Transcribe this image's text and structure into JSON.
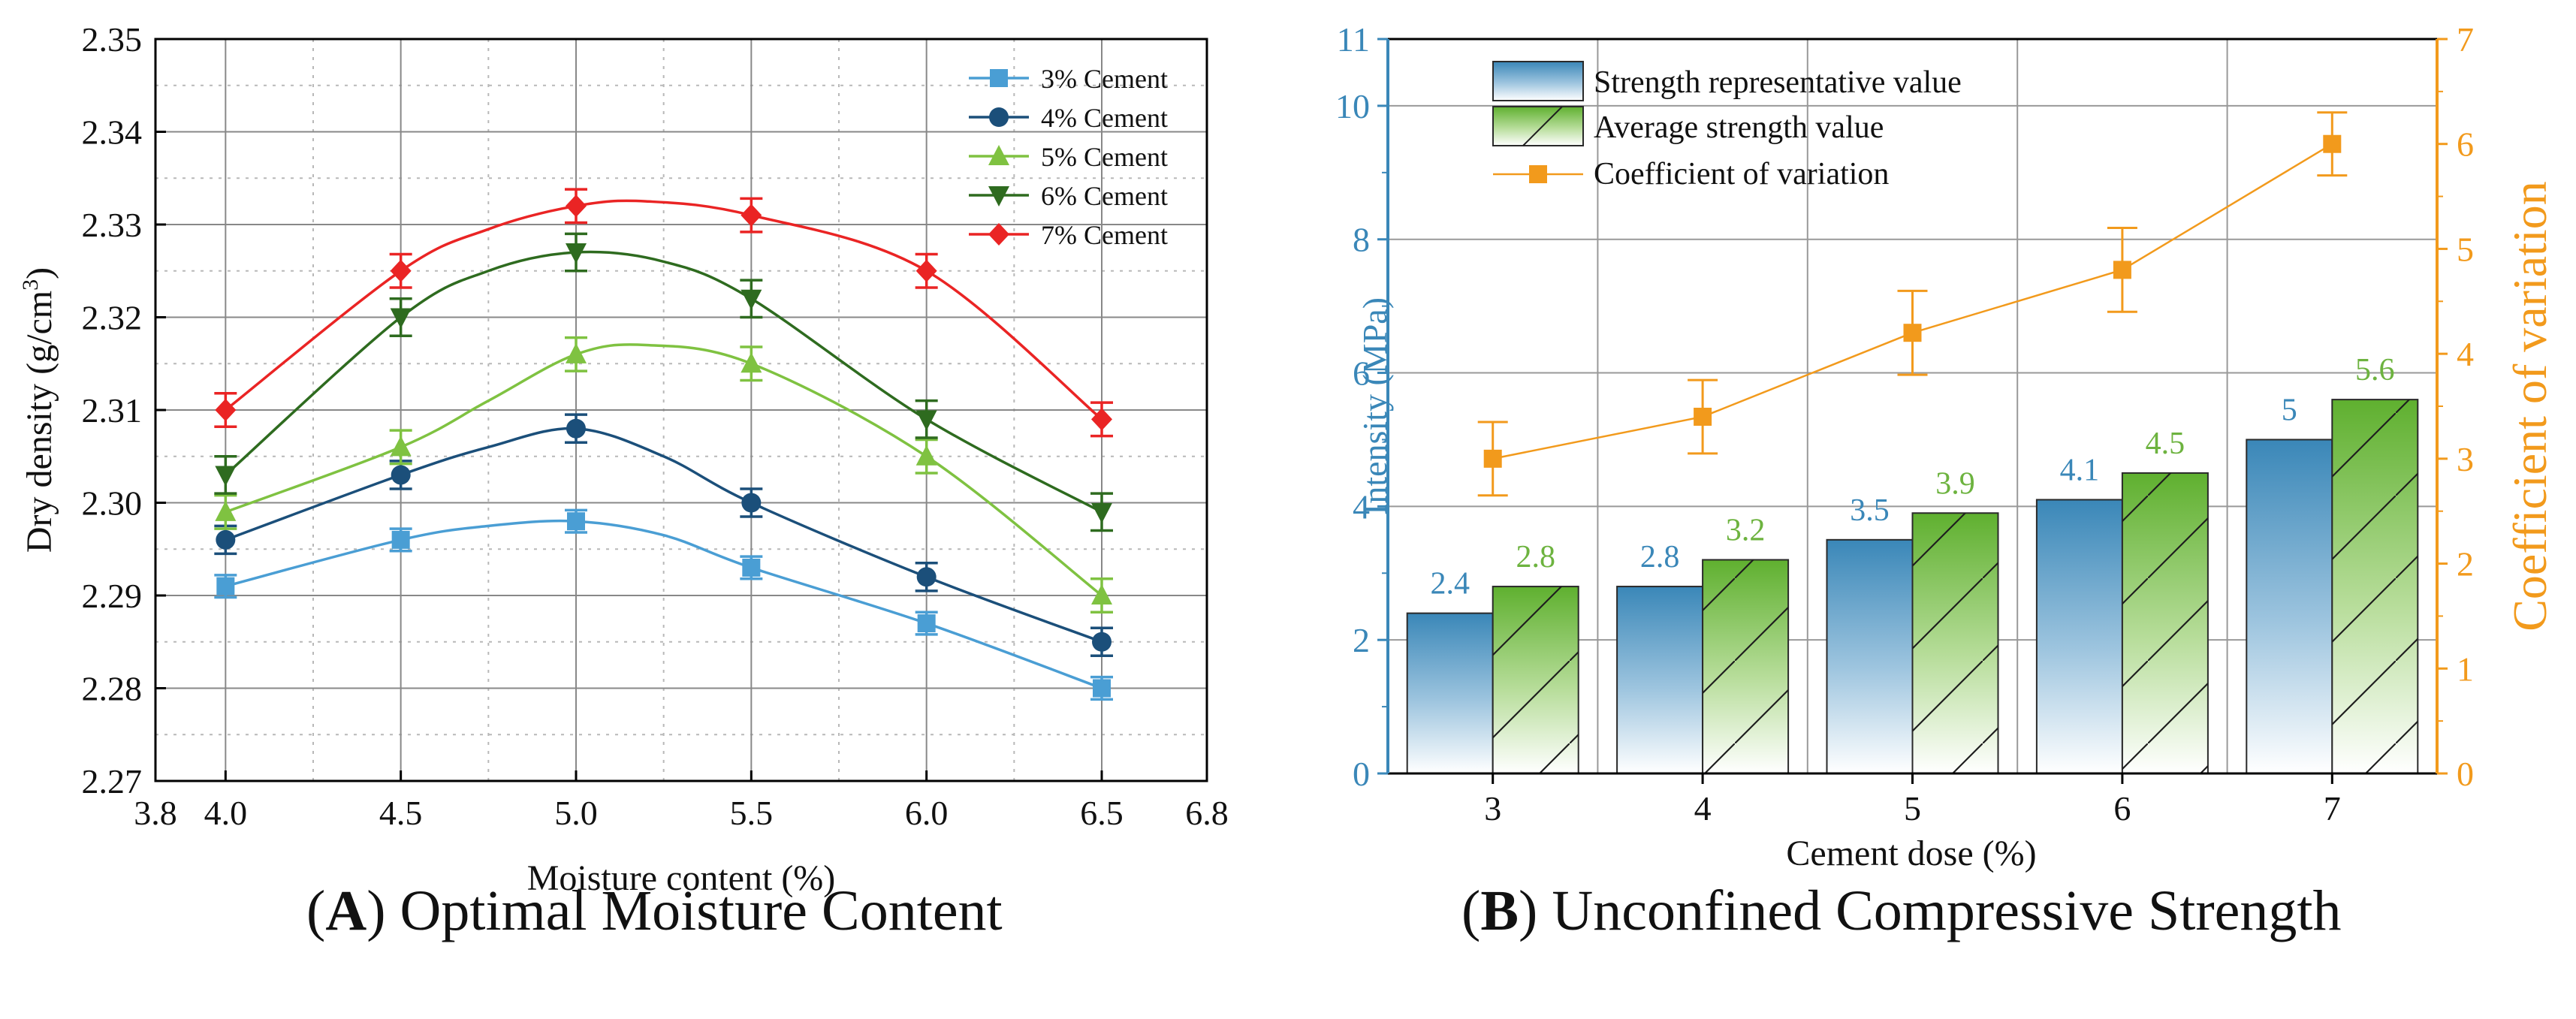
{
  "colors": {
    "c3": "#4a9ed4",
    "c4": "#1b4f7a",
    "c5": "#7fc241",
    "c6": "#2e6b1f",
    "c7": "#ea2424",
    "blue_axis": "#3a87b8",
    "orange": "#f29a1c",
    "green_label": "#6db33f",
    "grid": "#b8b8b8"
  },
  "chart_data": [
    {
      "id": "A",
      "type": "line",
      "title": "",
      "xlabel": "Moisture content (%)",
      "ylabel_main": "Dry density (g/cm",
      "ylabel_sup": "3",
      "ylabel_tail": ")",
      "xlim": [
        3.8,
        6.8
      ],
      "ylim": [
        2.27,
        2.35
      ],
      "xticks": [
        3.8,
        4.0,
        4.5,
        5.0,
        5.5,
        6.0,
        6.5,
        6.8
      ],
      "xtick_labels": [
        "3.8",
        "4.0",
        "4.5",
        "5.0",
        "5.5",
        "6.0",
        "6.5",
        "6.8"
      ],
      "yticks": [
        2.27,
        2.28,
        2.29,
        2.3,
        2.31,
        2.32,
        2.33,
        2.34,
        2.35
      ],
      "ytick_labels": [
        "2.27",
        "2.28",
        "2.29",
        "2.30",
        "2.31",
        "2.32",
        "2.33",
        "2.34",
        "2.35"
      ],
      "grid": true,
      "legend_position": "top-right",
      "x": [
        4.0,
        4.5,
        5.0,
        5.5,
        6.0,
        6.5
      ],
      "series": [
        {
          "name": "3% Cement",
          "color_key": "c3",
          "marker": "square",
          "values": [
            2.291,
            2.296,
            2.298,
            2.293,
            2.287,
            2.28
          ],
          "errors": [
            0.0012,
            0.0012,
            0.0012,
            0.0012,
            0.0012,
            0.0012
          ],
          "smooth": [
            [
              4.0,
              2.291
            ],
            [
              4.5,
              2.296
            ],
            [
              4.75,
              2.2975
            ],
            [
              5.0,
              2.298
            ],
            [
              5.25,
              2.2965
            ],
            [
              5.5,
              2.293
            ],
            [
              6.0,
              2.287
            ],
            [
              6.5,
              2.28
            ]
          ]
        },
        {
          "name": "4% Cement",
          "color_key": "c4",
          "marker": "circle",
          "values": [
            2.296,
            2.303,
            2.308,
            2.3,
            2.292,
            2.285
          ],
          "errors": [
            0.0015,
            0.0015,
            0.0015,
            0.0015,
            0.0015,
            0.0015
          ],
          "smooth": [
            [
              4.0,
              2.296
            ],
            [
              4.5,
              2.303
            ],
            [
              4.75,
              2.306
            ],
            [
              5.0,
              2.308
            ],
            [
              5.25,
              2.305
            ],
            [
              5.5,
              2.3
            ],
            [
              6.0,
              2.292
            ],
            [
              6.5,
              2.285
            ]
          ]
        },
        {
          "name": "5% Cement",
          "color_key": "c5",
          "marker": "triangle-up",
          "values": [
            2.299,
            2.306,
            2.316,
            2.315,
            2.305,
            2.29
          ],
          "errors": [
            0.0018,
            0.0018,
            0.0018,
            0.0018,
            0.0018,
            0.0018
          ],
          "smooth": [
            [
              4.0,
              2.299
            ],
            [
              4.5,
              2.306
            ],
            [
              4.75,
              2.311
            ],
            [
              5.0,
              2.316
            ],
            [
              5.2,
              2.317
            ],
            [
              5.5,
              2.315
            ],
            [
              6.0,
              2.305
            ],
            [
              6.5,
              2.29
            ]
          ]
        },
        {
          "name": "6% Cement",
          "color_key": "c6",
          "marker": "triangle-down",
          "values": [
            2.303,
            2.32,
            2.327,
            2.322,
            2.309,
            2.299
          ],
          "errors": [
            0.002,
            0.002,
            0.002,
            0.002,
            0.002,
            0.002
          ],
          "smooth": [
            [
              4.0,
              2.303
            ],
            [
              4.5,
              2.32
            ],
            [
              4.75,
              2.325
            ],
            [
              5.0,
              2.327
            ],
            [
              5.25,
              2.326
            ],
            [
              5.5,
              2.322
            ],
            [
              6.0,
              2.309
            ],
            [
              6.5,
              2.299
            ]
          ]
        },
        {
          "name": "7% Cement",
          "color_key": "c7",
          "marker": "diamond",
          "values": [
            2.31,
            2.325,
            2.332,
            2.331,
            2.325,
            2.309
          ],
          "errors": [
            0.0018,
            0.0018,
            0.0018,
            0.0018,
            0.0018,
            0.0018
          ],
          "smooth": [
            [
              4.0,
              2.31
            ],
            [
              4.5,
              2.325
            ],
            [
              4.75,
              2.3295
            ],
            [
              5.0,
              2.332
            ],
            [
              5.2,
              2.3325
            ],
            [
              5.5,
              2.331
            ],
            [
              6.0,
              2.325
            ],
            [
              6.5,
              2.309
            ]
          ]
        }
      ]
    },
    {
      "id": "B",
      "type": "bar",
      "title": "",
      "xlabel": "Cement dose (%)",
      "ylabel": "Intensity (MPa)",
      "ylabel_right": "Coefficient of variation",
      "categories": [
        "3",
        "4",
        "5",
        "6",
        "7"
      ],
      "ylim": [
        0,
        11
      ],
      "yticks": [
        0,
        2,
        4,
        6,
        8,
        10,
        11
      ],
      "ytick_labels": [
        "0",
        "2",
        "4",
        "6",
        "8",
        "10",
        "11"
      ],
      "ylim_right": [
        0,
        7
      ],
      "yticks_right": [
        0,
        1,
        2,
        3,
        4,
        5,
        6,
        7
      ],
      "ytick_labels_right": [
        "0",
        "1",
        "2",
        "3",
        "4",
        "5",
        "6",
        "7"
      ],
      "grid": true,
      "legend_position": "top-left",
      "series": [
        {
          "name": "Strength representative value",
          "axis": "left",
          "kind": "bar",
          "values": [
            2.4,
            2.8,
            3.5,
            4.1,
            5
          ],
          "labels": [
            "2.4",
            "2.8",
            "3.5",
            "4.1",
            "5"
          ]
        },
        {
          "name": "Average strength value",
          "axis": "left",
          "kind": "bar",
          "values": [
            2.8,
            3.2,
            3.9,
            4.5,
            5.6
          ],
          "labels": [
            "2.8",
            "3.2",
            "3.9",
            "4.5",
            "5.6"
          ]
        },
        {
          "name": "Coefficient of variation",
          "axis": "right",
          "kind": "line",
          "values": [
            3.0,
            3.4,
            4.2,
            4.8,
            6.0
          ],
          "errors": [
            0.35,
            0.35,
            0.4,
            0.4,
            0.3
          ]
        }
      ]
    }
  ],
  "captions": {
    "a_letter": "A",
    "a_text": ") Optimal Moisture Content",
    "b_letter": "B",
    "b_text": ") Unconfined Compressive Strength",
    "open_paren": "("
  }
}
